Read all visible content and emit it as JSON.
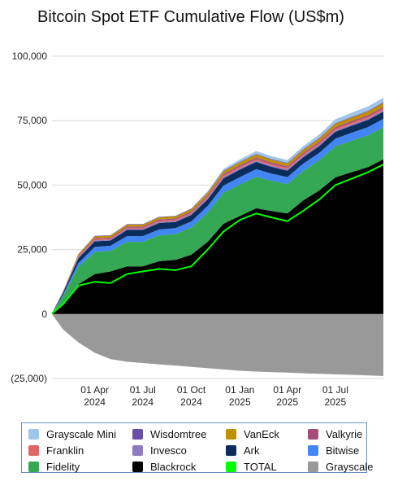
{
  "chart_data": {
    "type": "area",
    "title": "Bitcoin Spot ETF Cumulative Flow (US$m)",
    "xlabel": "",
    "ylabel": "",
    "ylim": [
      -25000,
      100000
    ],
    "yticks": [
      {
        "value": 100000,
        "label": "100,000"
      },
      {
        "value": 75000,
        "label": "75,000"
      },
      {
        "value": 50000,
        "label": "50,000"
      },
      {
        "value": 25000,
        "label": "25,000"
      },
      {
        "value": 0,
        "label": "0"
      },
      {
        "value": -25000,
        "label": "(25,000)"
      }
    ],
    "xlim": [
      "2024-01-11",
      "2025-09-30"
    ],
    "xticks": [
      {
        "date": "2024-04-01",
        "line1": "01 Apr",
        "line2": "2024"
      },
      {
        "date": "2024-07-01",
        "line1": "01 Jul",
        "line2": "2024"
      },
      {
        "date": "2024-10-01",
        "line1": "01 Oct",
        "line2": "2024"
      },
      {
        "date": "2025-01-01",
        "line1": "01 Jan",
        "line2": "2025"
      },
      {
        "date": "2025-04-01",
        "line1": "01 Apr",
        "line2": "2025"
      },
      {
        "date": "2025-07-01",
        "line1": "01 Jul",
        "line2": "2025"
      }
    ],
    "grid": true,
    "legend_position": "bottom",
    "dates": [
      "2024-01-11",
      "2024-02-01",
      "2024-03-01",
      "2024-04-01",
      "2024-05-01",
      "2024-06-01",
      "2024-07-01",
      "2024-08-01",
      "2024-09-01",
      "2024-10-01",
      "2024-11-01",
      "2024-12-01",
      "2025-01-01",
      "2025-02-01",
      "2025-03-01",
      "2025-04-01",
      "2025-05-01",
      "2025-06-01",
      "2025-07-01",
      "2025-08-01",
      "2025-09-01",
      "2025-09-30"
    ],
    "series": [
      {
        "name": "Blackrock",
        "color": "#000000",
        "kind": "area",
        "values": [
          100,
          3500,
          11500,
          15500,
          16500,
          18500,
          18500,
          20500,
          21000,
          23000,
          28000,
          35000,
          38000,
          41000,
          40000,
          39000,
          44000,
          48000,
          53000,
          55000,
          57000,
          60000
        ]
      },
      {
        "name": "Fidelity",
        "color": "#34a853",
        "kind": "area",
        "values": [
          150,
          3300,
          6800,
          8500,
          8000,
          9500,
          9500,
          10000,
          10000,
          10500,
          11300,
          12000,
          12200,
          12300,
          11700,
          11400,
          11500,
          11700,
          12000,
          12200,
          12300,
          12400
        ]
      },
      {
        "name": "Bitwise",
        "color": "#4285f4",
        "kind": "area",
        "values": [
          30,
          700,
          1500,
          2000,
          2000,
          2200,
          2200,
          2300,
          2300,
          2400,
          2600,
          2800,
          2900,
          2900,
          2800,
          2700,
          2800,
          2900,
          3000,
          3100,
          3200,
          3300
        ]
      },
      {
        "name": "Ark",
        "color": "#0b2d5c",
        "kind": "area",
        "values": [
          20,
          800,
          1800,
          2200,
          2000,
          2400,
          2400,
          2500,
          2400,
          2500,
          2600,
          2800,
          2900,
          2800,
          2600,
          2500,
          2500,
          2600,
          2700,
          2700,
          2800,
          2800
        ]
      },
      {
        "name": "Invesco",
        "color": "#8e7cc3",
        "kind": "area",
        "values": [
          5,
          100,
          300,
          400,
          350,
          400,
          400,
          420,
          410,
          430,
          450,
          480,
          500,
          500,
          490,
          480,
          490,
          500,
          510,
          520,
          520,
          530
        ]
      },
      {
        "name": "Franklin",
        "color": "#e06666",
        "kind": "area",
        "values": [
          5,
          100,
          300,
          400,
          400,
          450,
          450,
          480,
          480,
          500,
          550,
          600,
          620,
          630,
          620,
          610,
          620,
          640,
          660,
          680,
          690,
          700
        ]
      },
      {
        "name": "Valkyrie",
        "color": "#a64d79",
        "kind": "area",
        "values": [
          5,
          100,
          300,
          400,
          400,
          450,
          450,
          480,
          470,
          490,
          520,
          560,
          580,
          590,
          580,
          570,
          580,
          600,
          610,
          620,
          630,
          640
        ]
      },
      {
        "name": "VanEck",
        "color": "#bf9000",
        "kind": "area",
        "values": [
          5,
          200,
          600,
          700,
          700,
          750,
          750,
          800,
          800,
          850,
          950,
          1050,
          1100,
          1150,
          1120,
          1100,
          1150,
          1200,
          1300,
          1350,
          1400,
          1450
        ]
      },
      {
        "name": "Wisdomtree",
        "color": "#674ea7",
        "kind": "area",
        "values": [
          5,
          50,
          150,
          200,
          200,
          200,
          200,
          210,
          210,
          220,
          230,
          240,
          250,
          255,
          250,
          250,
          255,
          260,
          270,
          280,
          285,
          290
        ]
      },
      {
        "name": "Grayscale Mini",
        "color": "#9fc5e8",
        "kind": "area",
        "values": [
          0,
          0,
          0,
          0,
          0,
          0,
          0,
          0,
          0,
          50,
          400,
          700,
          900,
          1100,
          1100,
          1100,
          1200,
          1300,
          1500,
          1600,
          1700,
          1800
        ]
      },
      {
        "name": "Grayscale",
        "color": "#999999",
        "kind": "area_negative",
        "values": [
          0,
          -6000,
          -11000,
          -15000,
          -17500,
          -18500,
          -19000,
          -19500,
          -20000,
          -20500,
          -21000,
          -21500,
          -22000,
          -22300,
          -22500,
          -22700,
          -23000,
          -23200,
          -23400,
          -23600,
          -23800,
          -24000
        ]
      },
      {
        "name": "TOTAL",
        "color": "#00ff00",
        "kind": "line",
        "values": [
          200,
          3800,
          11000,
          12500,
          12000,
          15500,
          16500,
          17500,
          17000,
          18500,
          25000,
          32000,
          36500,
          39000,
          37500,
          36000,
          40000,
          44500,
          50000,
          52500,
          55000,
          58000
        ]
      }
    ],
    "legend": [
      {
        "name": "Grayscale Mini",
        "color": "#9fc5e8"
      },
      {
        "name": "Wisdomtree",
        "color": "#674ea7"
      },
      {
        "name": "VanEck",
        "color": "#bf9000"
      },
      {
        "name": "Valkyrie",
        "color": "#a64d79"
      },
      {
        "name": "Franklin",
        "color": "#e06666"
      },
      {
        "name": "Invesco",
        "color": "#8e7cc3"
      },
      {
        "name": "Ark",
        "color": "#0b2d5c"
      },
      {
        "name": "Bitwise",
        "color": "#4285f4"
      },
      {
        "name": "Fidelity",
        "color": "#34a853"
      },
      {
        "name": "Blackrock",
        "color": "#000000"
      },
      {
        "name": "TOTAL",
        "color": "#00ff00"
      },
      {
        "name": "Grayscale",
        "color": "#999999"
      }
    ]
  }
}
